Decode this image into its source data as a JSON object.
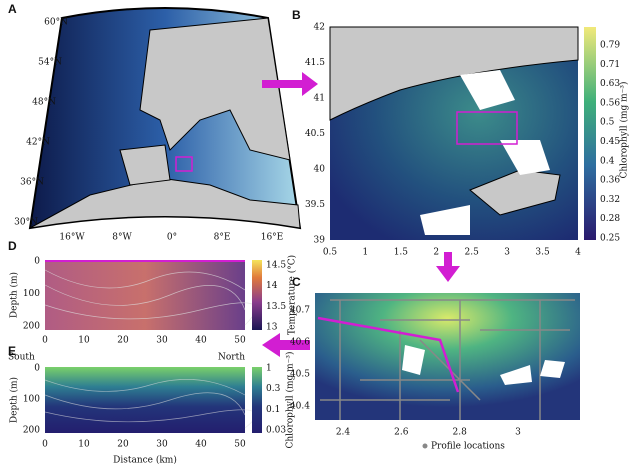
{
  "panels": {
    "A": {
      "label": "A",
      "lat_labels": [
        "60°N",
        "54°N",
        "48°N",
        "42°N",
        "36°N",
        "30°N"
      ],
      "lon_labels": [
        "16°W",
        "8°W",
        "0°",
        "8°E",
        "16°E"
      ]
    },
    "B": {
      "label": "B",
      "y_ticks": [
        "42",
        "41.5",
        "41",
        "40.5",
        "40",
        "39.5",
        "39"
      ],
      "x_ticks": [
        "0.5",
        "1",
        "1.5",
        "2",
        "2.5",
        "3",
        "3.5",
        "4"
      ],
      "colorbar_label": "Chlorophyll (mg m⁻³)",
      "colorbar_ticks": [
        "0.79",
        "0.71",
        "0.63",
        "0.56",
        "0.5",
        "0.45",
        "0.4",
        "0.36",
        "0.32",
        "0.28",
        "0.25"
      ]
    },
    "C": {
      "label": "C",
      "y_ticks": [
        "40.7",
        "40.6",
        "40.5",
        "40.4"
      ],
      "x_ticks": [
        "2.4",
        "2.6",
        "2.8",
        "3"
      ],
      "legend": "Profile locations"
    },
    "D": {
      "label": "D",
      "y_label": "Depth (m)",
      "y_ticks": [
        "0",
        "100",
        "200"
      ],
      "x_ticks": [
        "0",
        "10",
        "20",
        "30",
        "40",
        "50"
      ],
      "colorbar_label": "Temperature (°C)",
      "colorbar_ticks": [
        "14.5",
        "14",
        "13.5",
        "13"
      ]
    },
    "E": {
      "label": "E",
      "south": "South",
      "north": "North",
      "y_label": "Depth (m)",
      "y_ticks": [
        "0",
        "100",
        "200"
      ],
      "x_ticks": [
        "0",
        "10",
        "20",
        "30",
        "40",
        "50"
      ],
      "x_label": "Distance (km)",
      "colorbar_label": "Chlorophyll (mg m⁻³)",
      "colorbar_ticks": [
        "1",
        "0.3",
        "0.1",
        "0.03"
      ]
    }
  }
}
